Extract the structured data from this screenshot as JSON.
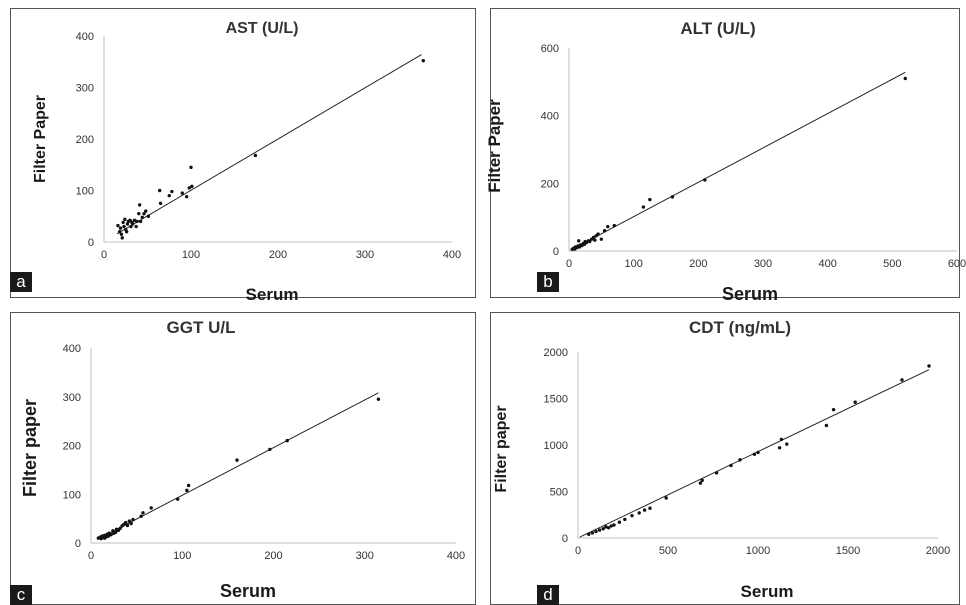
{
  "panels": [
    {
      "letter": "a"
    },
    {
      "letter": "b"
    },
    {
      "letter": "c"
    },
    {
      "letter": "d"
    }
  ],
  "chart_data": [
    {
      "type": "scatter",
      "title": "AST (U/L)",
      "xlabel": "Serum",
      "ylabel": "Filter Paper",
      "xlim": [
        0,
        400
      ],
      "ylim": [
        0,
        400
      ],
      "xticks": [
        "0",
        "100",
        "200",
        "300",
        "400"
      ],
      "yticks": [
        "0",
        "100",
        "200",
        "300",
        "400"
      ],
      "grid": false,
      "trendline": {
        "x": [
          15,
          365
        ],
        "y": [
          16,
          364
        ]
      },
      "points": [
        [
          16,
          32
        ],
        [
          18,
          20
        ],
        [
          19,
          27
        ],
        [
          20,
          15
        ],
        [
          21,
          8
        ],
        [
          22,
          38
        ],
        [
          23,
          30
        ],
        [
          24,
          44
        ],
        [
          25,
          24
        ],
        [
          26,
          20
        ],
        [
          27,
          35
        ],
        [
          28,
          40
        ],
        [
          30,
          42
        ],
        [
          31,
          30
        ],
        [
          32,
          38
        ],
        [
          33,
          35
        ],
        [
          35,
          42
        ],
        [
          37,
          30
        ],
        [
          38,
          40
        ],
        [
          40,
          55
        ],
        [
          41,
          72
        ],
        [
          42,
          40
        ],
        [
          44,
          48
        ],
        [
          46,
          55
        ],
        [
          48,
          60
        ],
        [
          51,
          50
        ],
        [
          64,
          100
        ],
        [
          65,
          75
        ],
        [
          75,
          90
        ],
        [
          78,
          98
        ],
        [
          90,
          95
        ],
        [
          95,
          88
        ],
        [
          98,
          105
        ],
        [
          100,
          145
        ],
        [
          101,
          108
        ],
        [
          174,
          168
        ],
        [
          367,
          352
        ]
      ]
    },
    {
      "type": "scatter",
      "title": "ALT (U/L)",
      "xlabel": "Serum",
      "ylabel": "Filter Paper",
      "xlim": [
        0,
        600
      ],
      "ylim": [
        0,
        600
      ],
      "xticks": [
        "0",
        "100",
        "200",
        "300",
        "400",
        "500",
        "600"
      ],
      "yticks": [
        "0",
        "200",
        "400",
        "600"
      ],
      "grid": false,
      "trendline": {
        "x": [
          3,
          520
        ],
        "y": [
          3,
          528
        ]
      },
      "points": [
        [
          5,
          5
        ],
        [
          7,
          8
        ],
        [
          9,
          6
        ],
        [
          10,
          12
        ],
        [
          12,
          10
        ],
        [
          14,
          15
        ],
        [
          15,
          30
        ],
        [
          16,
          12
        ],
        [
          18,
          18
        ],
        [
          20,
          16
        ],
        [
          22,
          22
        ],
        [
          24,
          20
        ],
        [
          25,
          28
        ],
        [
          27,
          25
        ],
        [
          30,
          30
        ],
        [
          32,
          28
        ],
        [
          35,
          35
        ],
        [
          38,
          40
        ],
        [
          40,
          32
        ],
        [
          42,
          45
        ],
        [
          45,
          50
        ],
        [
          50,
          35
        ],
        [
          55,
          60
        ],
        [
          60,
          72
        ],
        [
          70,
          75
        ],
        [
          115,
          130
        ],
        [
          125,
          152
        ],
        [
          160,
          160
        ],
        [
          210,
          210
        ],
        [
          520,
          510
        ]
      ]
    },
    {
      "type": "scatter",
      "title": "GGT U/L",
      "xlabel": "Serum",
      "ylabel": "Filter paper",
      "xlim": [
        0,
        400
      ],
      "ylim": [
        0,
        400
      ],
      "xticks": [
        "0",
        "100",
        "200",
        "300",
        "400"
      ],
      "yticks": [
        "0",
        "100",
        "200",
        "300",
        "400"
      ],
      "grid": false,
      "trendline": {
        "x": [
          8,
          315
        ],
        "y": [
          8,
          308
        ]
      },
      "points": [
        [
          8,
          10
        ],
        [
          10,
          12
        ],
        [
          11,
          9
        ],
        [
          12,
          14
        ],
        [
          13,
          11
        ],
        [
          14,
          15
        ],
        [
          15,
          10
        ],
        [
          16,
          16
        ],
        [
          17,
          13
        ],
        [
          18,
          18
        ],
        [
          19,
          14
        ],
        [
          20,
          20
        ],
        [
          22,
          17
        ],
        [
          24,
          25
        ],
        [
          25,
          20
        ],
        [
          27,
          22
        ],
        [
          28,
          28
        ],
        [
          30,
          26
        ],
        [
          32,
          30
        ],
        [
          34,
          35
        ],
        [
          36,
          38
        ],
        [
          38,
          42
        ],
        [
          40,
          36
        ],
        [
          42,
          45
        ],
        [
          44,
          40
        ],
        [
          46,
          48
        ],
        [
          55,
          55
        ],
        [
          57,
          62
        ],
        [
          66,
          72
        ],
        [
          95,
          90
        ],
        [
          105,
          108
        ],
        [
          107,
          118
        ],
        [
          160,
          170
        ],
        [
          196,
          192
        ],
        [
          215,
          210
        ],
        [
          315,
          295
        ]
      ]
    },
    {
      "type": "scatter",
      "title": "CDT (ng/mL)",
      "xlabel": "Serum",
      "ylabel": "Filter paper",
      "xlim": [
        0,
        2000
      ],
      "ylim": [
        0,
        2000
      ],
      "xticks": [
        "0",
        "500",
        "1000",
        "1500",
        "2000"
      ],
      "yticks": [
        "0",
        "500",
        "1000",
        "1500",
        "2000"
      ],
      "grid": false,
      "trendline": {
        "x": [
          10,
          1950
        ],
        "y": [
          10,
          1810
        ]
      },
      "points": [
        [
          60,
          40
        ],
        [
          80,
          55
        ],
        [
          100,
          70
        ],
        [
          120,
          85
        ],
        [
          140,
          100
        ],
        [
          155,
          120
        ],
        [
          170,
          110
        ],
        [
          185,
          130
        ],
        [
          200,
          140
        ],
        [
          230,
          170
        ],
        [
          260,
          200
        ],
        [
          300,
          240
        ],
        [
          340,
          270
        ],
        [
          370,
          300
        ],
        [
          400,
          320
        ],
        [
          490,
          430
        ],
        [
          680,
          590
        ],
        [
          690,
          620
        ],
        [
          770,
          700
        ],
        [
          850,
          780
        ],
        [
          900,
          840
        ],
        [
          980,
          900
        ],
        [
          1000,
          920
        ],
        [
          1120,
          970
        ],
        [
          1130,
          1060
        ],
        [
          1160,
          1010
        ],
        [
          1380,
          1210
        ],
        [
          1420,
          1380
        ],
        [
          1540,
          1460
        ],
        [
          1800,
          1700
        ],
        [
          1950,
          1850
        ]
      ]
    }
  ]
}
